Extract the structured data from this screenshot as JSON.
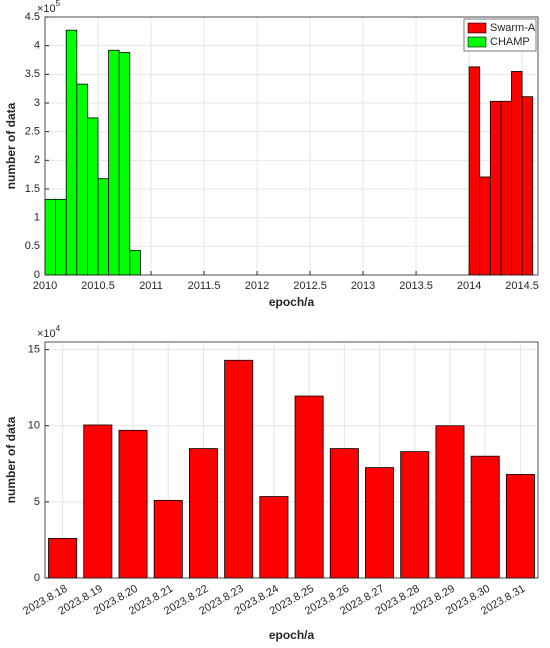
{
  "chart_data": [
    {
      "type": "bar",
      "xlabel": "epoch/a",
      "ylabel": "number of data",
      "y_multiplier": "×10",
      "y_exponent": "5",
      "bar_width": 0.1,
      "legend": "upper right",
      "grid": true,
      "series": [
        {
          "name": "Swarm-A",
          "color": "#ff0000",
          "x": [
            2014.05,
            2014.15,
            2014.25,
            2014.35,
            2014.45,
            2014.55
          ],
          "values": [
            3.63,
            1.71,
            3.03,
            3.03,
            3.55,
            3.11
          ]
        },
        {
          "name": "CHAMP",
          "color": "#00ff00",
          "x": [
            2010.05,
            2010.15,
            2010.25,
            2010.35,
            2010.45,
            2010.55,
            2010.65,
            2010.75,
            2010.85
          ],
          "values": [
            1.32,
            1.32,
            4.27,
            3.33,
            2.74,
            1.68,
            3.92,
            3.88,
            0.43
          ]
        }
      ],
      "xlim": [
        2010,
        2014.65
      ],
      "xticks": [
        2010,
        2010.5,
        2011,
        2011.5,
        2012,
        2012.5,
        2013,
        2013.5,
        2014,
        2014.5
      ],
      "ylim": [
        0,
        4.5
      ],
      "yticks": [
        0,
        0.5,
        1,
        1.5,
        2,
        2.5,
        3,
        3.5,
        4,
        4.5
      ]
    },
    {
      "type": "bar",
      "xlabel": "epoch/a",
      "ylabel": "number of data",
      "y_multiplier": "×10",
      "y_exponent": "4",
      "color": "#ff0000",
      "grid": true,
      "categories": [
        "2023.8.18",
        "2023.8.19",
        "2023.8.20",
        "2023.8.21",
        "2023.8.22",
        "2023.8.23",
        "2023.8.24",
        "2023.8.25",
        "2023.8.26",
        "2023.8.27",
        "2023.8.28",
        "2023.8.29",
        "2023.8.30",
        "2023.8.31"
      ],
      "values": [
        2.6,
        10.05,
        9.7,
        5.1,
        8.5,
        14.3,
        5.35,
        11.95,
        8.5,
        7.25,
        8.3,
        10.0,
        8.0,
        6.8
      ],
      "ylim": [
        0,
        15.5
      ],
      "yticks": [
        0,
        5,
        10,
        15
      ]
    }
  ]
}
